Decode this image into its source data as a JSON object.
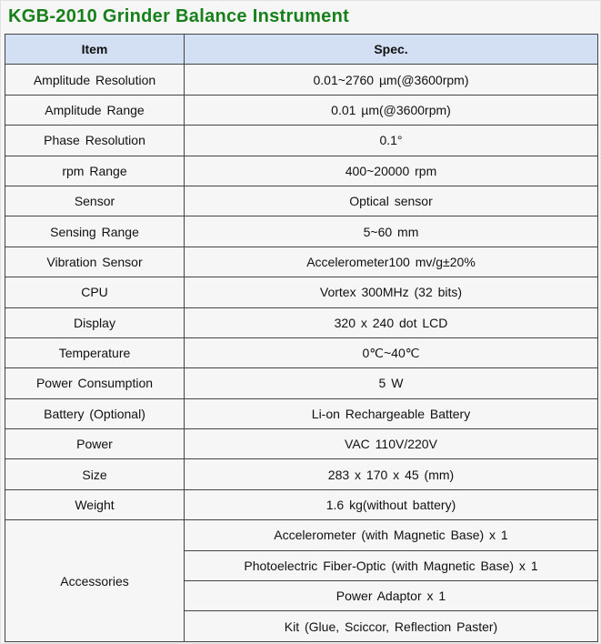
{
  "title": "KGB-2010 Grinder Balance Instrument",
  "header": {
    "item": "Item",
    "spec": "Spec."
  },
  "rows": [
    {
      "item": "Amplitude Resolution",
      "spec": "0.01~2760 µm(@3600rpm)"
    },
    {
      "item": "Amplitude Range",
      "spec": "0.01 µm(@3600rpm)"
    },
    {
      "item": "Phase Resolution",
      "spec": "0.1°"
    },
    {
      "item": "rpm Range",
      "spec": "400~20000 rpm"
    },
    {
      "item": "Sensor",
      "spec": "Optical sensor"
    },
    {
      "item": "Sensing Range",
      "spec": "5~60 mm"
    },
    {
      "item": "Vibration Sensor",
      "spec": "Accelerometer100 mv/g±20%"
    },
    {
      "item": "CPU",
      "spec": "Vortex 300MHz (32 bits)"
    },
    {
      "item": "Display",
      "spec": "320 x 240 dot LCD"
    },
    {
      "item": "Temperature",
      "spec": "0℃~40℃"
    },
    {
      "item": "Power Consumption",
      "spec": "5 W"
    },
    {
      "item": "Battery (Optional)",
      "spec": "Li-on Rechargeable Battery"
    },
    {
      "item": "Power",
      "spec": "VAC 110V/220V"
    },
    {
      "item": "Size",
      "spec": "283 x 170 x 45 (mm)"
    },
    {
      "item": "Weight",
      "spec": "1.6 kg(without battery)"
    }
  ],
  "accessories": {
    "item": "Accessories",
    "specs": [
      "Accelerometer (with Magnetic Base) x 1",
      "Photoelectric Fiber-Optic (with Magnetic Base) x 1",
      "Power Adaptor x 1",
      "Kit (Glue, Sciccor, Reflection Paster)"
    ]
  },
  "colors": {
    "title": "#17801a",
    "header_bg": "#d3dff2",
    "background": "#f6f6f6"
  }
}
